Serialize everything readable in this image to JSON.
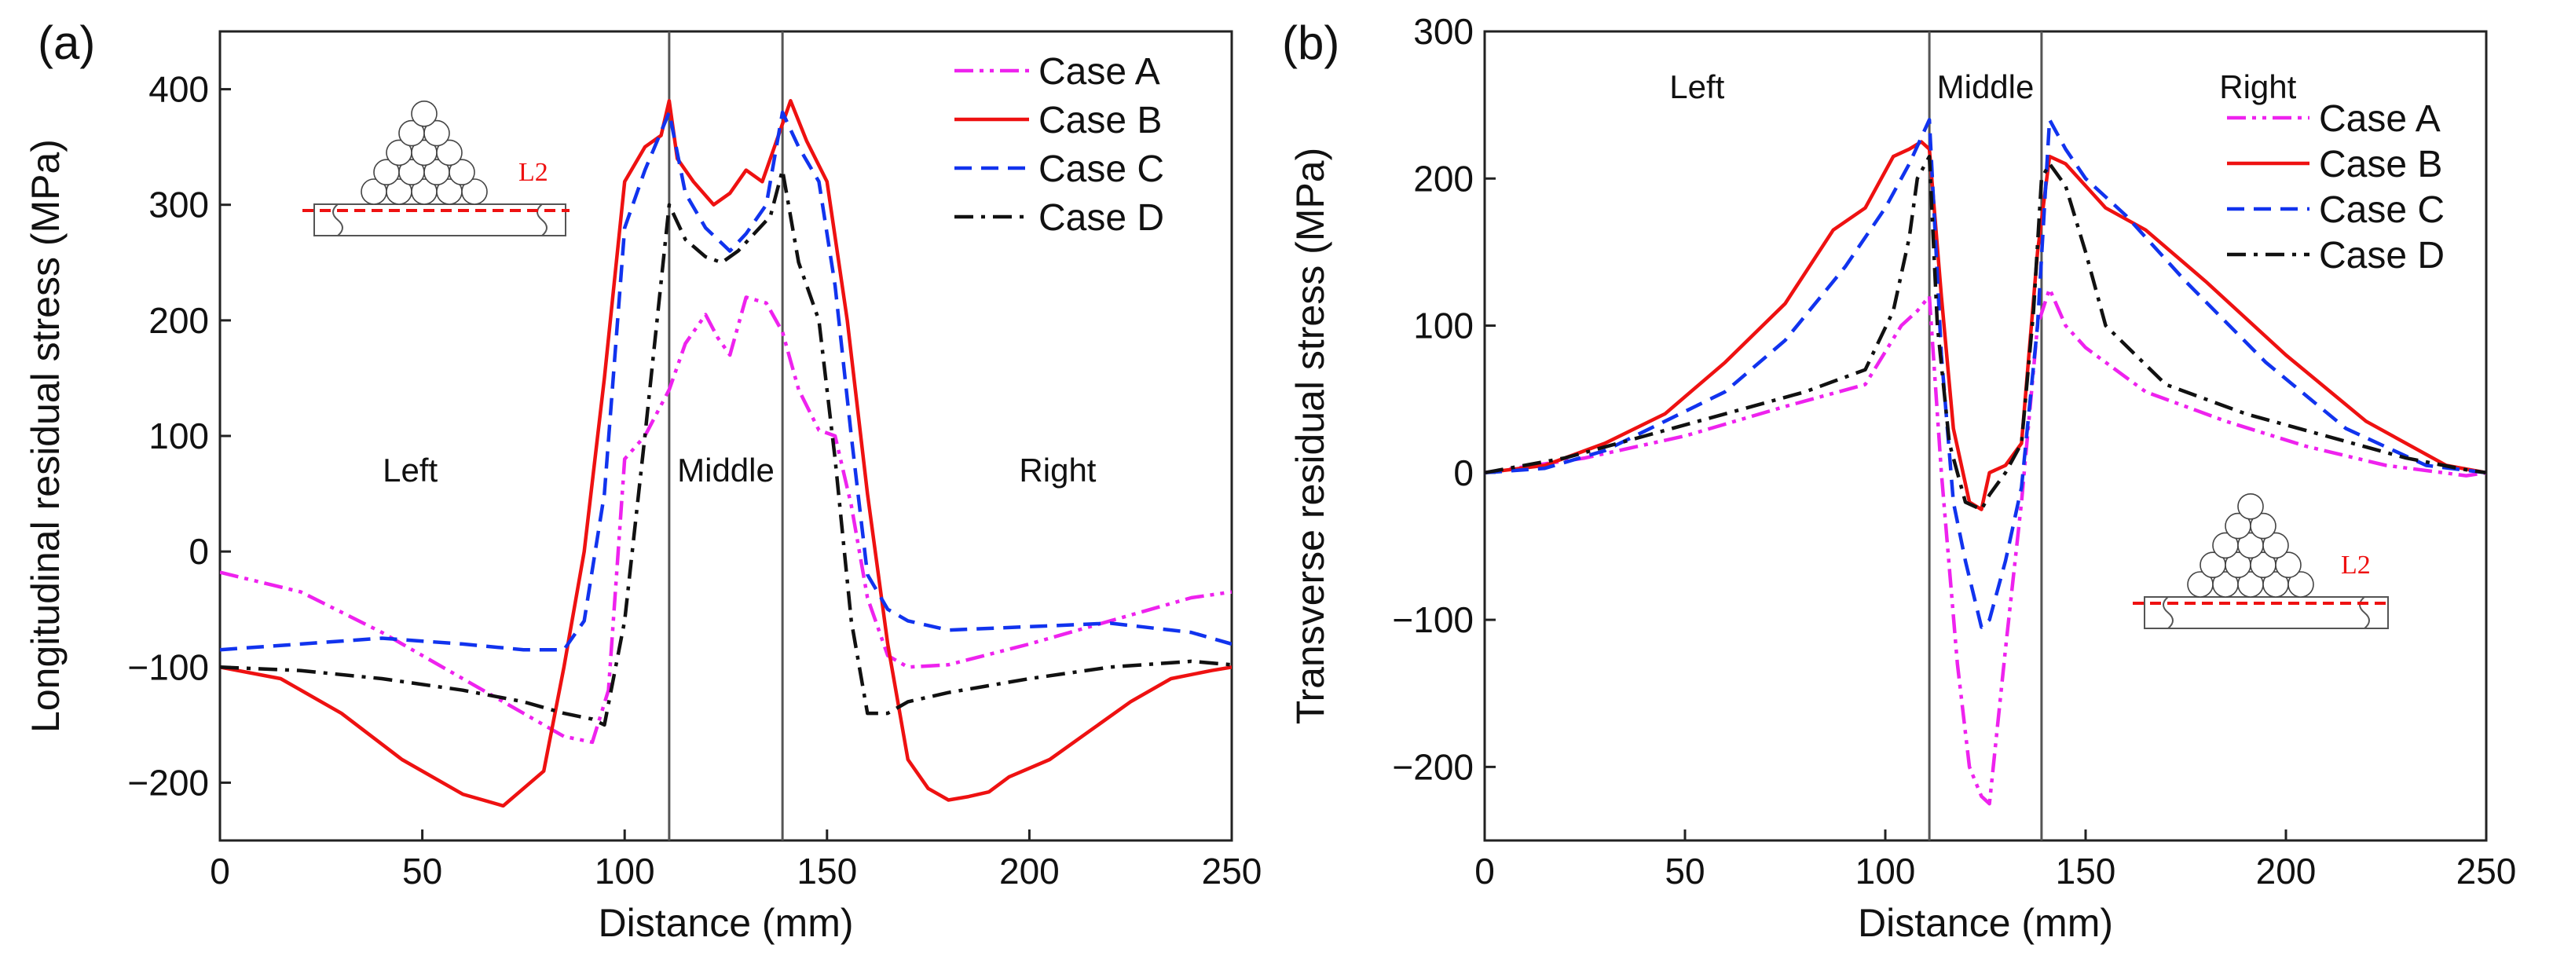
{
  "chart_data": [
    {
      "type": "line",
      "panel_label": "(a)",
      "title": "",
      "xlabel": "Distance (mm)",
      "ylabel": "Longitudinal residual stress (MPa)",
      "xlim": [
        0,
        250
      ],
      "ylim": [
        -250,
        450
      ],
      "xticks": [
        0,
        50,
        100,
        150,
        200,
        250
      ],
      "yticks": [
        -200,
        -100,
        0,
        100,
        200,
        300,
        400
      ],
      "xtick_labels": [
        "0",
        "50",
        "100",
        "150",
        "200",
        "250"
      ],
      "ytick_labels": [
        "−200",
        "−100",
        "0",
        "100",
        "200",
        "300",
        "400"
      ],
      "grid": false,
      "legend_position": "top-right",
      "vlines": [
        111,
        139
      ],
      "regions": [
        {
          "label": "Left",
          "x": 47,
          "y": 70
        },
        {
          "label": "Middle",
          "x": 125,
          "y": 70
        },
        {
          "label": "Right",
          "x": 207,
          "y": 70
        }
      ],
      "inset_label": "L2",
      "series": [
        {
          "name": "Case A",
          "color": "#ee22ee",
          "dash": "dashdotdot",
          "x": [
            0,
            20,
            40,
            60,
            75,
            85,
            92,
            96,
            100,
            105,
            111,
            115,
            120,
            123,
            126,
            130,
            135,
            139,
            143,
            148,
            152,
            156,
            160,
            165,
            170,
            180,
            200,
            220,
            240,
            250
          ],
          "y": [
            -18,
            -35,
            -70,
            -110,
            -140,
            -160,
            -165,
            -120,
            80,
            100,
            140,
            180,
            205,
            185,
            170,
            220,
            215,
            190,
            140,
            105,
            100,
            40,
            -40,
            -90,
            -100,
            -98,
            -80,
            -60,
            -40,
            -35
          ]
        },
        {
          "name": "Case B",
          "color": "#ee1111",
          "dash": "solid",
          "x": [
            0,
            15,
            30,
            45,
            60,
            70,
            75,
            80,
            85,
            90,
            95,
            100,
            105,
            109,
            111,
            113,
            117,
            122,
            126,
            130,
            134,
            138,
            141,
            145,
            150,
            155,
            160,
            165,
            170,
            175,
            180,
            185,
            190,
            195,
            205,
            215,
            225,
            235,
            245,
            250
          ],
          "y": [
            -100,
            -110,
            -140,
            -180,
            -210,
            -220,
            -205,
            -190,
            -100,
            0,
            150,
            320,
            350,
            360,
            390,
            340,
            320,
            300,
            310,
            330,
            320,
            360,
            390,
            355,
            320,
            200,
            50,
            -80,
            -180,
            -205,
            -215,
            -212,
            -208,
            -195,
            -180,
            -155,
            -130,
            -110,
            -103,
            -100
          ]
        },
        {
          "name": "Case C",
          "color": "#1133ee",
          "dash": "dashed",
          "x": [
            0,
            20,
            40,
            60,
            75,
            85,
            90,
            95,
            100,
            105,
            111,
            115,
            120,
            126,
            130,
            135,
            139,
            143,
            148,
            152,
            156,
            160,
            165,
            170,
            180,
            200,
            220,
            240,
            250
          ],
          "y": [
            -85,
            -80,
            -75,
            -80,
            -85,
            -85,
            -60,
            50,
            280,
            330,
            380,
            310,
            280,
            260,
            275,
            300,
            380,
            350,
            320,
            230,
            100,
            -20,
            -50,
            -60,
            -68,
            -65,
            -62,
            -70,
            -80
          ]
        },
        {
          "name": "Case D",
          "color": "#111111",
          "dash": "dashdot",
          "x": [
            0,
            20,
            40,
            60,
            75,
            85,
            92,
            95,
            100,
            105,
            111,
            115,
            120,
            124,
            128,
            132,
            136,
            139,
            143,
            148,
            152,
            156,
            160,
            165,
            170,
            180,
            200,
            220,
            240,
            250
          ],
          "y": [
            -100,
            -103,
            -110,
            -120,
            -130,
            -140,
            -145,
            -150,
            -60,
            100,
            300,
            270,
            255,
            250,
            260,
            275,
            290,
            330,
            250,
            200,
            80,
            -60,
            -140,
            -140,
            -130,
            -122,
            -110,
            -100,
            -95,
            -98
          ]
        }
      ]
    },
    {
      "type": "line",
      "panel_label": "(b)",
      "title": "",
      "xlabel": "Distance (mm)",
      "ylabel": "Transverse residual stress (MPa)",
      "xlim": [
        0,
        250
      ],
      "ylim": [
        -250,
        300
      ],
      "xticks": [
        0,
        50,
        100,
        150,
        200,
        250
      ],
      "yticks": [
        -200,
        -100,
        0,
        100,
        200,
        300
      ],
      "xtick_labels": [
        "0",
        "50",
        "100",
        "150",
        "200",
        "250"
      ],
      "ytick_labels": [
        "−200",
        "−100",
        "0",
        "100",
        "200",
        "300"
      ],
      "grid": false,
      "legend_position": "top-right",
      "vlines": [
        111,
        139
      ],
      "regions": [
        {
          "label": "Left",
          "x": 53,
          "y": 262
        },
        {
          "label": "Middle",
          "x": 125,
          "y": 262
        },
        {
          "label": "Right",
          "x": 193,
          "y": 262
        }
      ],
      "inset_label": "L2",
      "series": [
        {
          "name": "Case A",
          "color": "#ee22ee",
          "dash": "dashdotdot",
          "x": [
            0,
            25,
            50,
            75,
            95,
            104,
            108,
            111,
            114,
            118,
            121,
            124,
            126,
            130,
            134,
            138,
            141,
            145,
            150,
            165,
            185,
            205,
            225,
            245,
            250
          ],
          "y": [
            0,
            10,
            25,
            45,
            60,
            100,
            110,
            120,
            0,
            -130,
            -200,
            -220,
            -225,
            -120,
            -20,
            100,
            125,
            100,
            85,
            55,
            35,
            18,
            5,
            -2,
            0
          ]
        },
        {
          "name": "Case B",
          "color": "#ee1111",
          "dash": "solid",
          "x": [
            0,
            15,
            30,
            45,
            60,
            75,
            87,
            95,
            102,
            106,
            109,
            111,
            114,
            117,
            121,
            124,
            126,
            130,
            134,
            138,
            141,
            145,
            150,
            155,
            165,
            180,
            200,
            220,
            240,
            250
          ],
          "y": [
            0,
            5,
            20,
            40,
            75,
            115,
            165,
            180,
            215,
            220,
            225,
            220,
            120,
            30,
            -20,
            -25,
            0,
            5,
            20,
            150,
            215,
            210,
            195,
            180,
            165,
            130,
            80,
            35,
            5,
            0
          ]
        },
        {
          "name": "Case C",
          "color": "#1133ee",
          "dash": "dashed",
          "x": [
            0,
            15,
            30,
            45,
            60,
            75,
            90,
            100,
            106,
            111,
            114,
            117,
            120,
            124,
            126,
            130,
            134,
            138,
            141,
            145,
            150,
            160,
            175,
            195,
            215,
            235,
            250
          ],
          "y": [
            0,
            3,
            15,
            35,
            55,
            90,
            140,
            180,
            210,
            240,
            80,
            -20,
            -60,
            -105,
            -100,
            -60,
            -10,
            100,
            240,
            220,
            200,
            175,
            130,
            75,
            30,
            5,
            0
          ]
        },
        {
          "name": "Case D",
          "color": "#111111",
          "dash": "dashdot",
          "x": [
            0,
            20,
            40,
            60,
            80,
            95,
            102,
            106,
            108,
            111,
            113,
            116,
            120,
            124,
            126,
            130,
            134,
            137,
            139,
            141,
            145,
            150,
            155,
            170,
            190,
            210,
            230,
            245,
            250
          ],
          "y": [
            0,
            10,
            25,
            40,
            55,
            70,
            110,
            160,
            200,
            215,
            100,
            20,
            -20,
            -25,
            -15,
            0,
            20,
            110,
            200,
            210,
            195,
            150,
            100,
            60,
            40,
            25,
            10,
            2,
            0
          ]
        }
      ]
    }
  ]
}
